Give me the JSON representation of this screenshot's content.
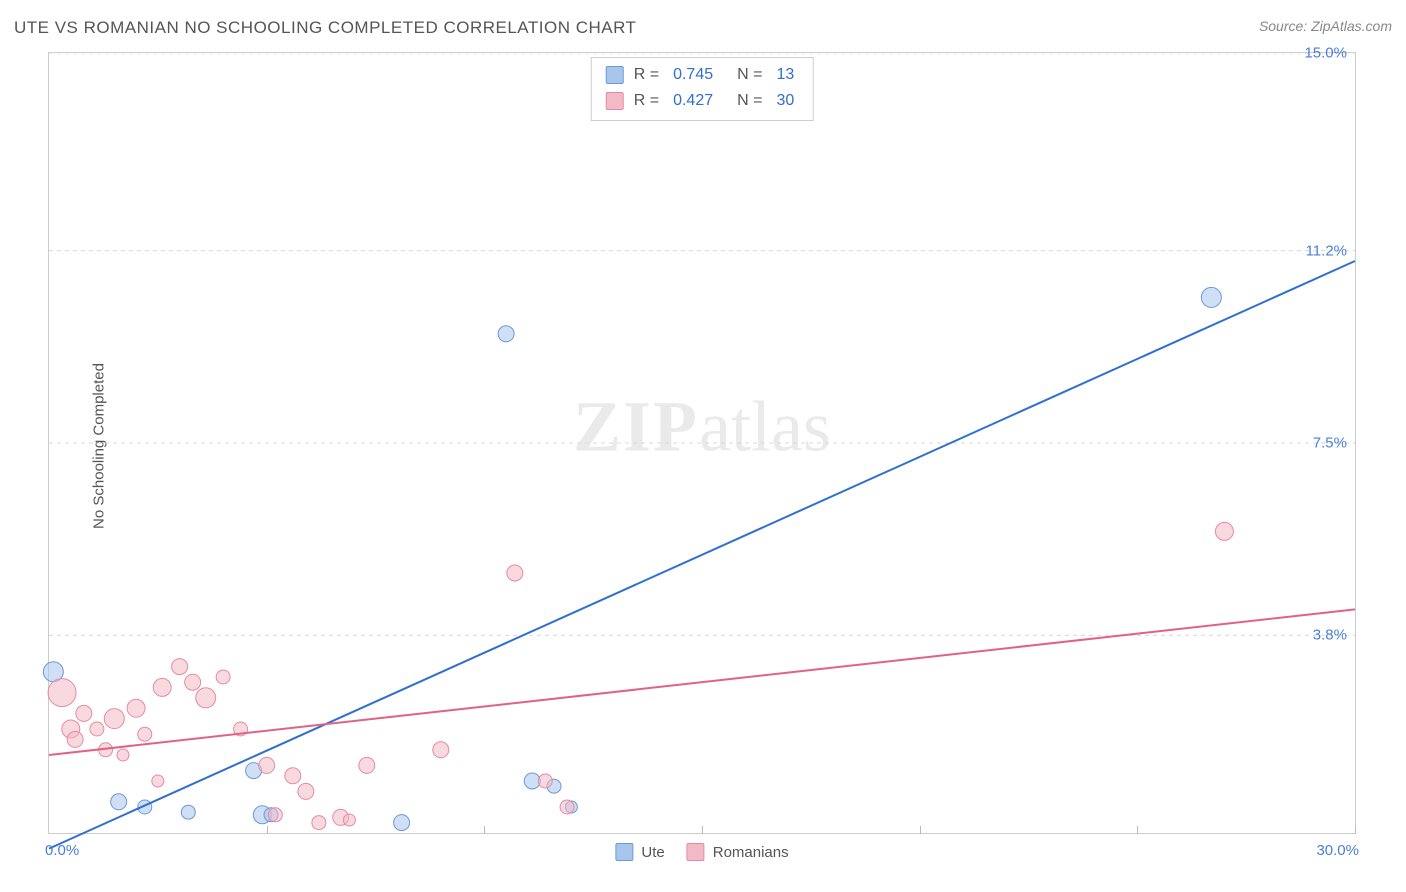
{
  "title": "UTE VS ROMANIAN NO SCHOOLING COMPLETED CORRELATION CHART",
  "source": "Source: ZipAtlas.com",
  "watermark": {
    "part1": "ZIP",
    "part2": "atlas"
  },
  "ylabel": "No Schooling Completed",
  "chart": {
    "type": "scatter-with-regression",
    "background_color": "#ffffff",
    "border_color": "#cccccc",
    "grid_color": "#d8d8d8",
    "xlim": [
      0,
      30
    ],
    "ylim": [
      0,
      15
    ],
    "xtick_step": 5,
    "yticks": [
      3.8,
      7.5,
      11.2,
      15.0
    ],
    "ytick_labels": [
      "3.8%",
      "7.5%",
      "11.2%",
      "15.0%"
    ],
    "x_start_label": "0.0%",
    "x_end_label": "30.0%",
    "label_color": "#4a7fd6",
    "label_fontsize": 15,
    "series": [
      {
        "key": "ute",
        "name": "Ute",
        "fill": "#a8c5ec",
        "stroke": "#6b99d6",
        "line_color": "#2f6fd0",
        "line_width": 2,
        "R": "0.745",
        "N": "13",
        "regression": {
          "x1": 0,
          "y1": -0.3,
          "x2": 30,
          "y2": 11.0
        },
        "points": [
          {
            "x": 0.1,
            "y": 3.1,
            "r": 10
          },
          {
            "x": 1.6,
            "y": 0.6,
            "r": 8
          },
          {
            "x": 2.2,
            "y": 0.5,
            "r": 7
          },
          {
            "x": 3.2,
            "y": 0.4,
            "r": 7
          },
          {
            "x": 4.7,
            "y": 1.2,
            "r": 8
          },
          {
            "x": 4.9,
            "y": 0.35,
            "r": 9
          },
          {
            "x": 5.1,
            "y": 0.35,
            "r": 7
          },
          {
            "x": 8.1,
            "y": 0.2,
            "r": 8
          },
          {
            "x": 10.5,
            "y": 9.6,
            "r": 8
          },
          {
            "x": 11.1,
            "y": 1.0,
            "r": 8
          },
          {
            "x": 11.6,
            "y": 0.9,
            "r": 7
          },
          {
            "x": 12.0,
            "y": 0.5,
            "r": 6
          },
          {
            "x": 26.7,
            "y": 10.3,
            "r": 10
          }
        ]
      },
      {
        "key": "romanians",
        "name": "Romanians",
        "fill": "#f2b9c6",
        "stroke": "#e58ba1",
        "line_color": "#e06287",
        "line_width": 2,
        "R": "0.427",
        "N": "30",
        "regression": {
          "x1": 0,
          "y1": 1.5,
          "x2": 30,
          "y2": 4.3
        },
        "points": [
          {
            "x": 0.3,
            "y": 2.7,
            "r": 14
          },
          {
            "x": 0.5,
            "y": 2.0,
            "r": 9
          },
          {
            "x": 0.6,
            "y": 1.8,
            "r": 8
          },
          {
            "x": 0.8,
            "y": 2.3,
            "r": 8
          },
          {
            "x": 1.1,
            "y": 2.0,
            "r": 7
          },
          {
            "x": 1.3,
            "y": 1.6,
            "r": 7
          },
          {
            "x": 1.5,
            "y": 2.2,
            "r": 10
          },
          {
            "x": 1.7,
            "y": 1.5,
            "r": 6
          },
          {
            "x": 2.0,
            "y": 2.4,
            "r": 9
          },
          {
            "x": 2.2,
            "y": 1.9,
            "r": 7
          },
          {
            "x": 2.5,
            "y": 1.0,
            "r": 6
          },
          {
            "x": 2.6,
            "y": 2.8,
            "r": 9
          },
          {
            "x": 3.0,
            "y": 3.2,
            "r": 8
          },
          {
            "x": 3.3,
            "y": 2.9,
            "r": 8
          },
          {
            "x": 3.6,
            "y": 2.6,
            "r": 10
          },
          {
            "x": 4.0,
            "y": 3.0,
            "r": 7
          },
          {
            "x": 4.4,
            "y": 2.0,
            "r": 7
          },
          {
            "x": 5.0,
            "y": 1.3,
            "r": 8
          },
          {
            "x": 5.2,
            "y": 0.35,
            "r": 7
          },
          {
            "x": 5.6,
            "y": 1.1,
            "r": 8
          },
          {
            "x": 5.9,
            "y": 0.8,
            "r": 8
          },
          {
            "x": 6.2,
            "y": 0.2,
            "r": 7
          },
          {
            "x": 6.7,
            "y": 0.3,
            "r": 8
          },
          {
            "x": 6.9,
            "y": 0.25,
            "r": 6
          },
          {
            "x": 7.3,
            "y": 1.3,
            "r": 8
          },
          {
            "x": 9.0,
            "y": 1.6,
            "r": 8
          },
          {
            "x": 10.7,
            "y": 5.0,
            "r": 8
          },
          {
            "x": 11.4,
            "y": 1.0,
            "r": 7
          },
          {
            "x": 11.9,
            "y": 0.5,
            "r": 7
          },
          {
            "x": 27.0,
            "y": 5.8,
            "r": 9
          }
        ]
      }
    ]
  },
  "legend_top": {
    "R_label": "R =",
    "N_label": "N ="
  },
  "legend_bottom": [
    {
      "key": "ute",
      "label": "Ute"
    },
    {
      "key": "romanians",
      "label": "Romanians"
    }
  ]
}
